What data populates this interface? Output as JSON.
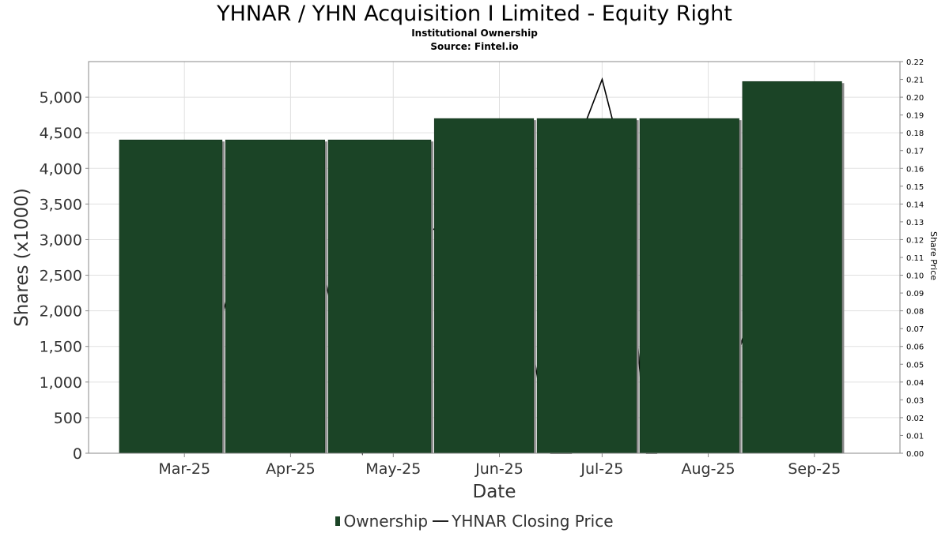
{
  "title": "YHNAR / YHN Acquisition I Limited - Equity Right",
  "subtitle1": "Institutional Ownership",
  "subtitle2": "Source: Fintel.io",
  "colors": {
    "bar": "#1b4426",
    "bar_shadow": "#8a8a8a",
    "line": "#000000",
    "grid": "#e0e0e0"
  },
  "chart_data": {
    "type": "bar",
    "title": "YHNAR / YHN Acquisition I Limited - Equity Right",
    "xlabel": "Date",
    "ylabel": "Shares (x1000)",
    "y2label": "Share Price",
    "ylim": [
      0,
      5500
    ],
    "y2lim": [
      0,
      0.22
    ],
    "yticks": [
      0,
      500,
      1000,
      1500,
      2000,
      2500,
      3000,
      3500,
      4000,
      4500,
      5000
    ],
    "yticklabels": [
      "0",
      "500",
      "1,000",
      "1,500",
      "2,000",
      "2,500",
      "3,000",
      "3,500",
      "4,000",
      "4,500",
      "5,000"
    ],
    "y2ticks": [
      "0.00",
      "0.01",
      "0.02",
      "0.03",
      "0.04",
      "0.05",
      "0.06",
      "0.07",
      "0.08",
      "0.09",
      "0.10",
      "0.11",
      "0.12",
      "0.13",
      "0.14",
      "0.15",
      "0.16",
      "0.17",
      "0.18",
      "0.19",
      "0.20",
      "0.21",
      "0.22"
    ],
    "xlim": [
      "2025-02-01",
      "2025-09-26"
    ],
    "xticks": [
      {
        "date": "2025-03-01",
        "label": "Mar-25"
      },
      {
        "date": "2025-04-01",
        "label": "Apr-25"
      },
      {
        "date": "2025-05-01",
        "label": "May-25"
      },
      {
        "date": "2025-06-01",
        "label": "Jun-25"
      },
      {
        "date": "2025-07-01",
        "label": "Jul-25"
      },
      {
        "date": "2025-08-01",
        "label": "Aug-25"
      },
      {
        "date": "2025-09-01",
        "label": "Sep-25"
      }
    ],
    "grid": true,
    "legend_position": "bottom",
    "series": [
      {
        "name": "Ownership",
        "type": "bar",
        "bars": [
          {
            "start": "2025-02-10",
            "end": "2025-03-12",
            "value": 4400
          },
          {
            "start": "2025-03-13",
            "end": "2025-04-11",
            "value": 4400
          },
          {
            "start": "2025-04-12",
            "end": "2025-05-12",
            "value": 4400
          },
          {
            "start": "2025-05-13",
            "end": "2025-06-11",
            "value": 4700
          },
          {
            "start": "2025-06-12",
            "end": "2025-07-11",
            "value": 4700
          },
          {
            "start": "2025-07-12",
            "end": "2025-08-10",
            "value": 4700
          },
          {
            "start": "2025-08-11",
            "end": "2025-09-09",
            "value": 5220
          }
        ]
      },
      {
        "name": "YHNAR Closing Price",
        "type": "line",
        "points": [
          {
            "date": "2025-03-07",
            "value": 0.04
          },
          {
            "date": "2025-03-24",
            "value": 0.165
          },
          {
            "date": "2025-04-02",
            "value": 0.095
          },
          {
            "date": "2025-04-08",
            "value": 0.126
          },
          {
            "date": "2025-04-22",
            "value": 0.0
          },
          {
            "date": "2025-05-12",
            "value": 0.125
          },
          {
            "date": "2025-05-17",
            "value": 0.13
          },
          {
            "date": "2025-06-06",
            "value": 0.11
          },
          {
            "date": "2025-06-16",
            "value": 0.0
          },
          {
            "date": "2025-06-22",
            "value": 0.0
          },
          {
            "date": "2025-06-25",
            "value": 0.18
          },
          {
            "date": "2025-07-01",
            "value": 0.21
          },
          {
            "date": "2025-07-07",
            "value": 0.165
          },
          {
            "date": "2025-07-14",
            "value": 0.0
          },
          {
            "date": "2025-07-17",
            "value": 0.0
          },
          {
            "date": "2025-08-09",
            "value": 0.05
          },
          {
            "date": "2025-08-21",
            "value": 0.135
          },
          {
            "date": "2025-09-01",
            "value": 0.175
          },
          {
            "date": "2025-09-04",
            "value": 0.19
          }
        ]
      }
    ]
  }
}
